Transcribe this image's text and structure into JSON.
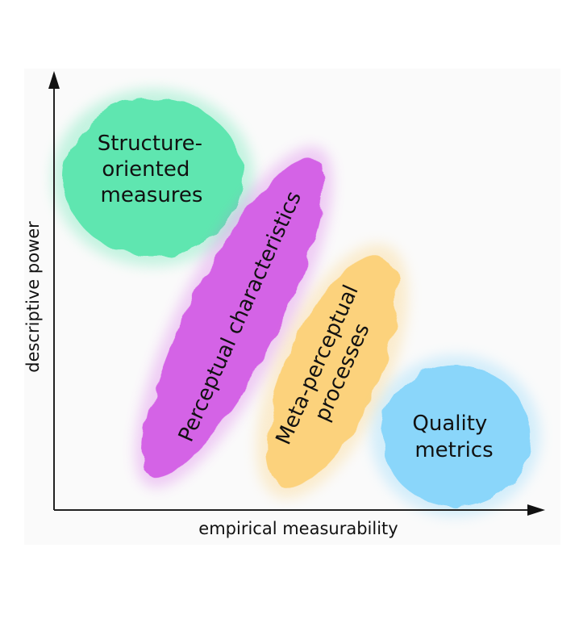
{
  "axes": {
    "x_label": "empirical measurability",
    "y_label": "descriptive power"
  },
  "regions": {
    "structure": {
      "lines": [
        "Structure-",
        "oriented",
        "measures"
      ],
      "color": "#5EE6B0"
    },
    "perceptual": {
      "lines": [
        "Perceptual characteristics"
      ],
      "color": "#D464E6"
    },
    "meta": {
      "lines": [
        "Meta-perceptual",
        "processes"
      ],
      "color": "#FCD27C"
    },
    "quality": {
      "lines": [
        "Quality",
        "metrics"
      ],
      "color": "#8AD6FA"
    }
  }
}
